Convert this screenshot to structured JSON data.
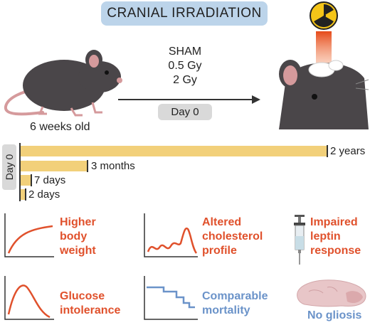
{
  "title": "CRANIAL IRRADIATION",
  "treatments": [
    "SHAM",
    "0.5 Gy",
    "2 Gy"
  ],
  "day0_label": "Day 0",
  "age_label": "6 weeks old",
  "timeline": {
    "axis_label": "Day 0",
    "bars": [
      {
        "label": "2 years"
      },
      {
        "label": "3 months"
      },
      {
        "label": "7 days"
      },
      {
        "label": "2 days"
      }
    ]
  },
  "outcomes": [
    {
      "lines": [
        "Higher",
        "body",
        "weight"
      ],
      "icon": "rising-curve-icon",
      "color": "#e0512c"
    },
    {
      "lines": [
        "Altered",
        "cholesterol",
        "profile"
      ],
      "icon": "spiky-curve-icon",
      "color": "#e0512c"
    },
    {
      "lines": [
        "Impaired",
        "leptin",
        "response"
      ],
      "icon": "syringe-icon",
      "color": "#e0512c"
    },
    {
      "lines": [
        "Glucose",
        "intolerance"
      ],
      "icon": "bell-curve-icon",
      "color": "#e0512c"
    },
    {
      "lines": [
        "Comparable",
        "mortality"
      ],
      "icon": "survival-curve-icon",
      "color": "#6b93c9"
    },
    {
      "lines": [
        "No gliosis"
      ],
      "icon": "brain-icon",
      "color": "#6b93c9"
    }
  ],
  "colors": {
    "title_bg": "#bcd4ea",
    "bar_fill": "#f2d07a",
    "accent_red": "#e0512c",
    "accent_blue": "#6b93c9",
    "mouse_body": "#4a4649",
    "mouse_ear": "#d59a9c"
  }
}
